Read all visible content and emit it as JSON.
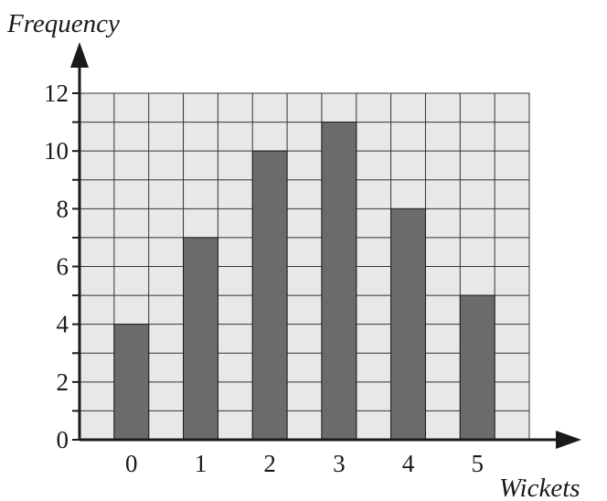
{
  "chart_data": {
    "type": "bar",
    "title": "",
    "xlabel": "Wickets",
    "ylabel": "Frequency",
    "categories": [
      "0",
      "1",
      "2",
      "3",
      "4",
      "5"
    ],
    "values": [
      4,
      7,
      10,
      11,
      8,
      5
    ],
    "ylim": [
      0,
      12
    ],
    "y_ticks": [
      "0",
      "2",
      "4",
      "6",
      "8",
      "10",
      "12"
    ],
    "grid": true,
    "colors": {
      "bar": "#6b6b6b",
      "grid_fill": "#e8e8e8",
      "grid_line": "#333333",
      "axis": "#1a1a1a"
    }
  }
}
